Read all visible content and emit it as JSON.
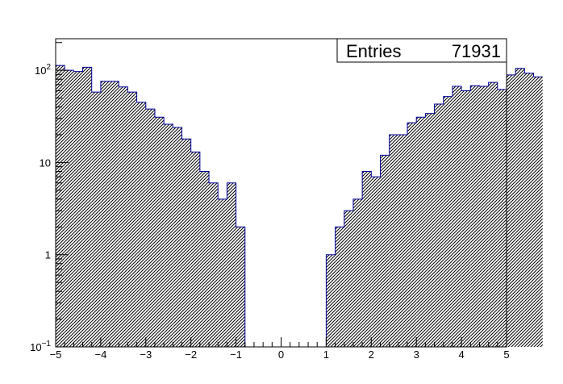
{
  "chart_data": {
    "type": "bar",
    "title": "",
    "xlabel": "",
    "ylabel": "",
    "y_scale": "log",
    "xlim": [
      -5,
      5
    ],
    "ylim": [
      0.1,
      220
    ],
    "grid": false,
    "bar_fill": "#000080",
    "bar_edge": "#000099",
    "bar_style": "hatched",
    "stats_box": {
      "label": "Entries",
      "value": "71931",
      "placement": "top-right"
    },
    "x_ticks": [
      {
        "value": -5,
        "label": "−5"
      },
      {
        "value": -4,
        "label": "−4"
      },
      {
        "value": -3,
        "label": "−3"
      },
      {
        "value": -2,
        "label": "−2"
      },
      {
        "value": -1,
        "label": "−1"
      },
      {
        "value": 0,
        "label": "0"
      },
      {
        "value": 1,
        "label": "1"
      },
      {
        "value": 2,
        "label": "2"
      },
      {
        "value": 3,
        "label": "3"
      },
      {
        "value": 4,
        "label": "4"
      },
      {
        "value": 5,
        "label": "5"
      }
    ],
    "y_ticks": [
      {
        "value": 0.1,
        "base": "10",
        "exp": "−1"
      },
      {
        "value": 1,
        "base": "1",
        "exp": ""
      },
      {
        "value": 10,
        "base": "10",
        "exp": ""
      },
      {
        "value": 100,
        "base": "10",
        "exp": "2"
      }
    ],
    "bins": {
      "start": -5,
      "width": 0.2
    },
    "values": [
      113,
      100,
      97,
      108,
      58,
      76,
      76,
      66,
      58,
      45,
      38,
      31,
      26,
      24,
      18,
      13,
      8,
      6,
      4,
      6,
      2,
      0,
      0,
      0,
      0,
      0,
      0,
      0,
      0,
      0,
      1,
      2,
      3,
      4,
      8,
      7,
      12,
      20,
      20,
      27,
      31,
      34,
      43,
      52,
      67,
      60,
      68,
      67,
      74,
      62,
      89,
      105,
      93,
      85
    ]
  }
}
